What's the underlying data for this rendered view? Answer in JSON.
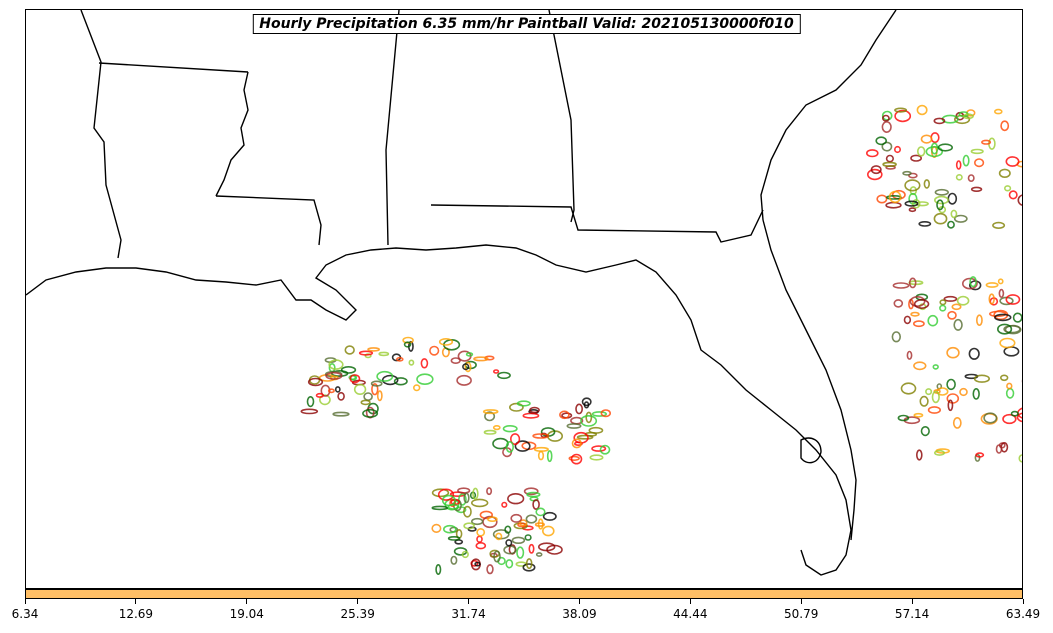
{
  "title": "Hourly Precipitation 6.35 mm/hr Paintball Valid: 202105130000f010",
  "colorbar": {
    "color": "#ffbf66",
    "ticks": [
      "6.34",
      "12.69",
      "19.04",
      "25.39",
      "31.74",
      "38.09",
      "44.44",
      "50.79",
      "57.14",
      "63.49"
    ]
  },
  "member_colors": [
    "#8b0000",
    "#ff0000",
    "#ff8c00",
    "#ffa500",
    "#808000",
    "#9acd32",
    "#006400",
    "#32cd32",
    "#000000",
    "#a52a2a",
    "#ff4500",
    "#556b2f"
  ]
}
